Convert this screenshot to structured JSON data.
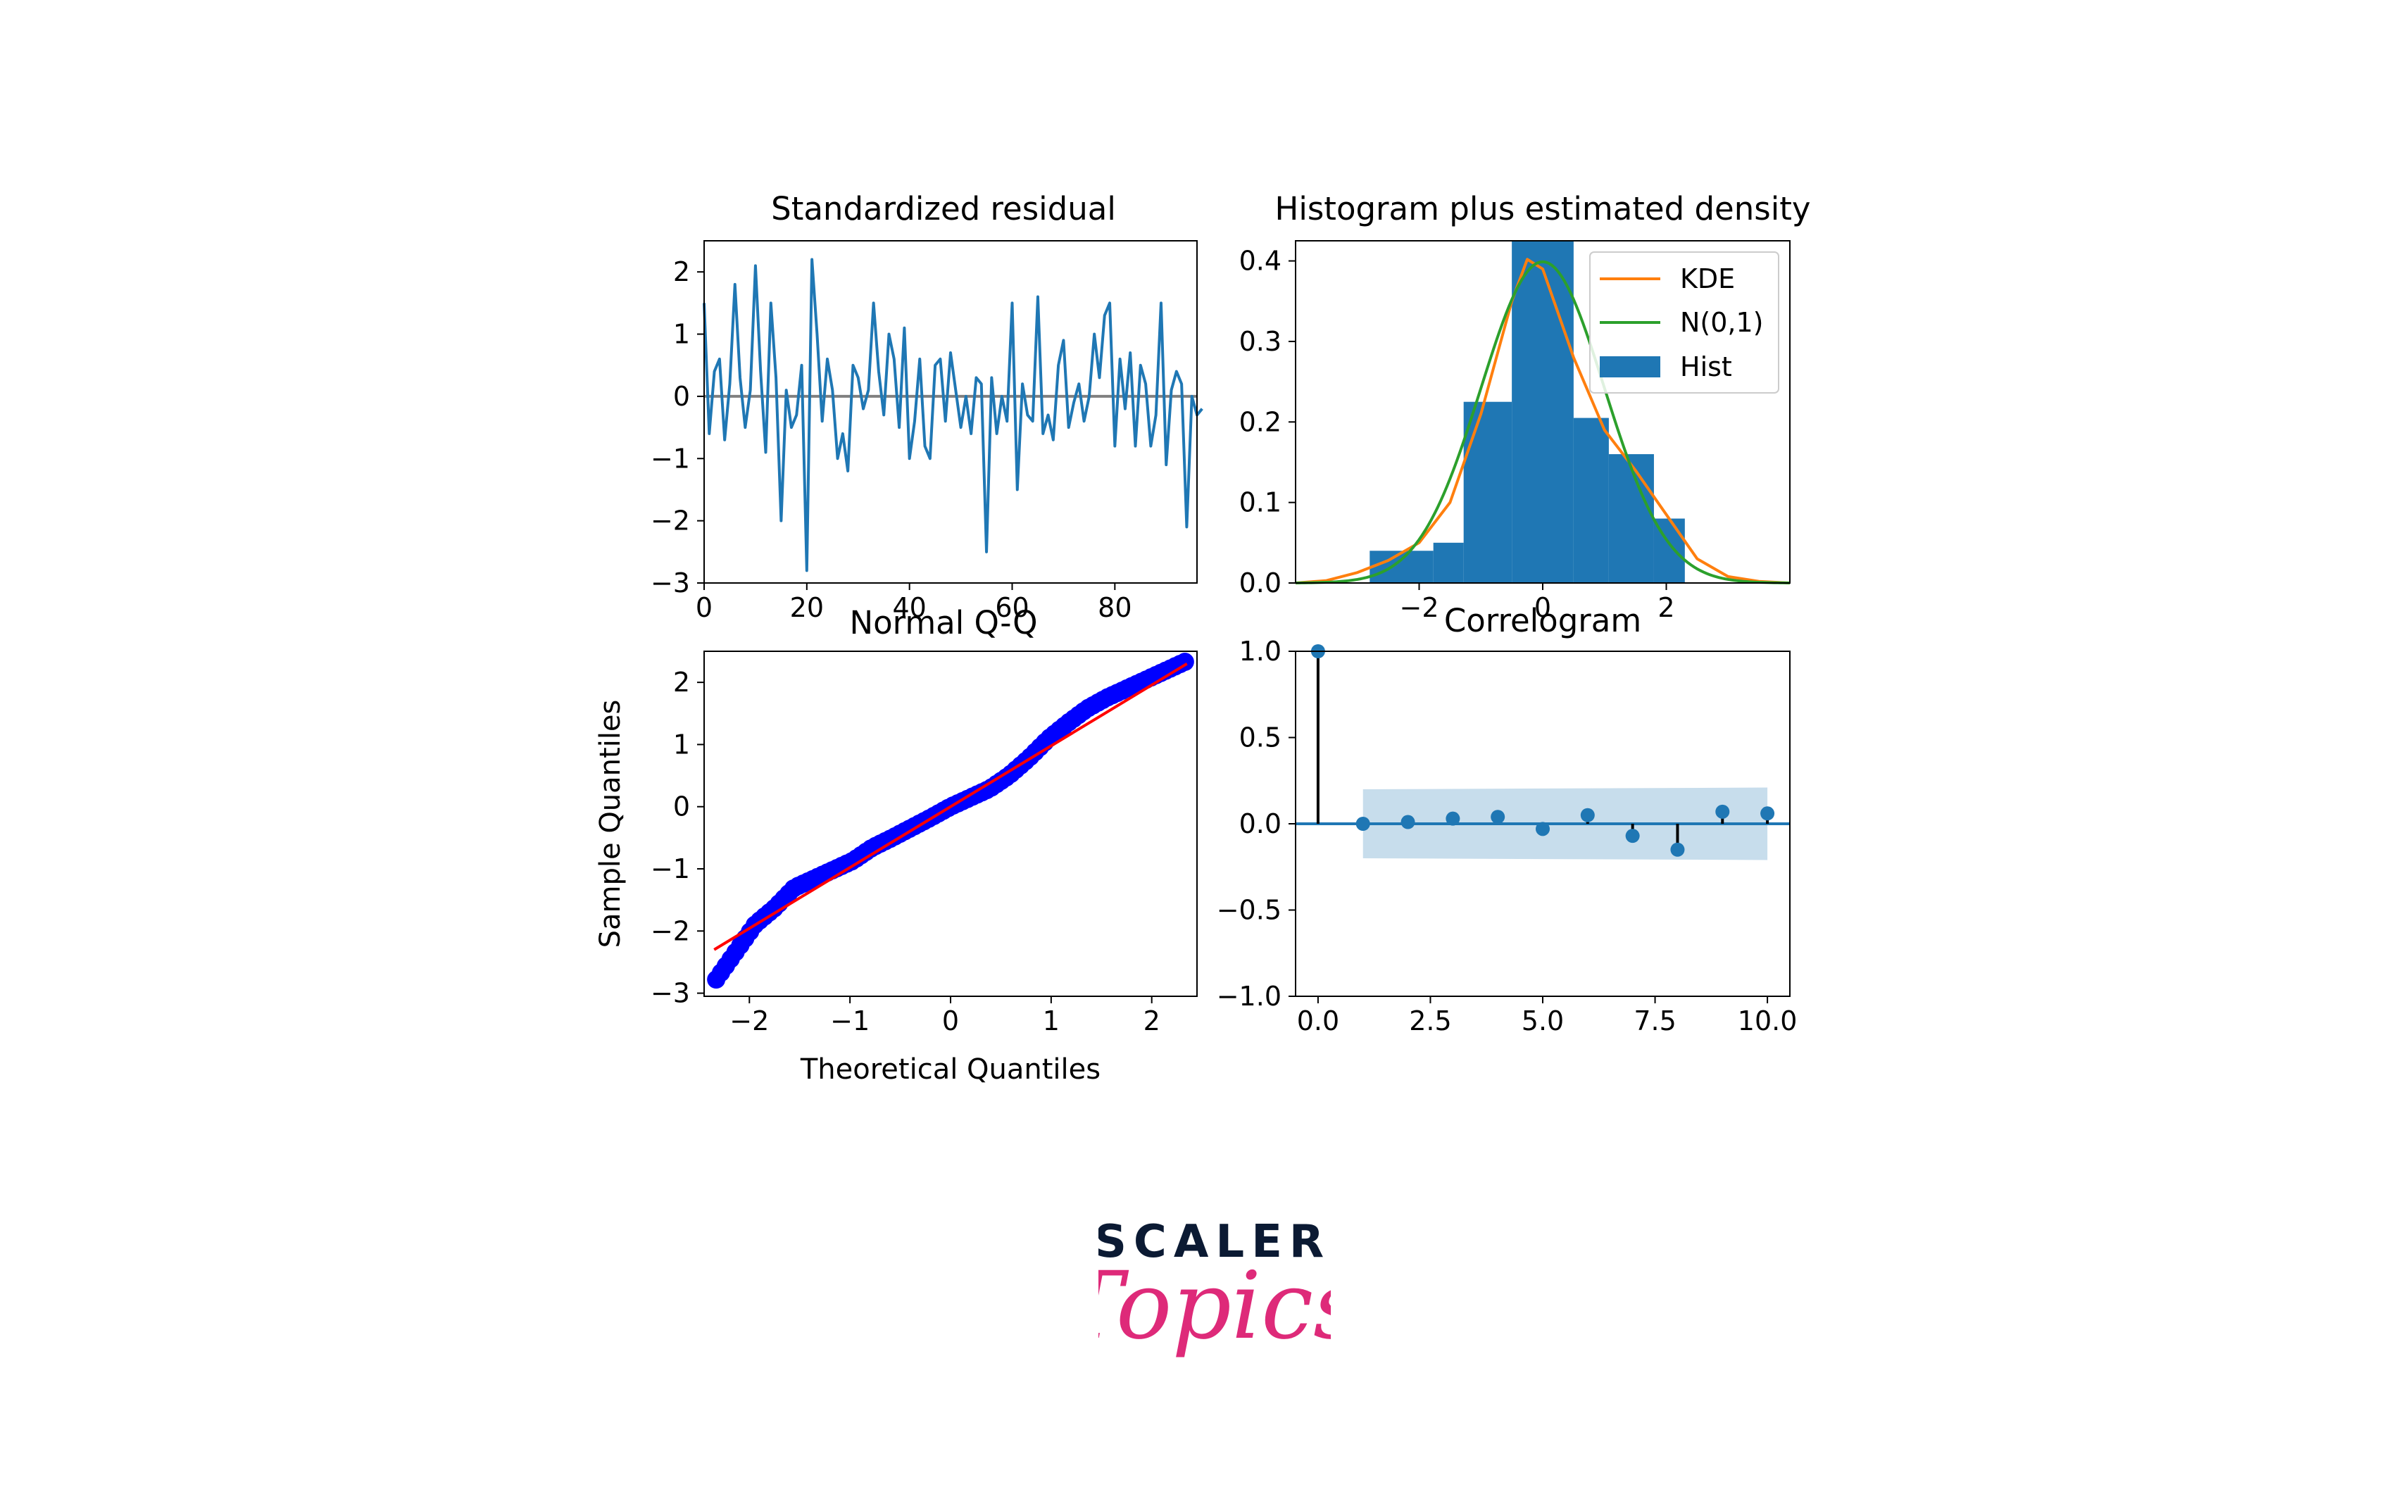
{
  "figure": {
    "panels": {
      "resid": {
        "title": "Standardized residual"
      },
      "hist": {
        "title": "Histogram plus estimated density"
      },
      "qq": {
        "title": "Normal Q-Q"
      },
      "corr": {
        "title": "Correlogram"
      }
    },
    "colors": {
      "blue": "#1f77b4",
      "orange": "#ff7f0e",
      "green": "#2ca02c",
      "red": "#ff0000",
      "qq_points": "#0000ff",
      "stem": "#000000"
    }
  },
  "chart_data": [
    {
      "type": "line",
      "title": "Standardized residual",
      "xlabel": "",
      "ylabel": "",
      "xlim": [
        0,
        96
      ],
      "ylim": [
        -3,
        2.5
      ],
      "xticks": [
        0,
        20,
        40,
        60,
        80
      ],
      "yticks": [
        -3,
        -2,
        -1,
        0,
        1,
        2
      ],
      "xtick_labels": [
        "0",
        "20",
        "40",
        "60",
        "80"
      ],
      "ytick_labels": [
        "−3",
        "−2",
        "−1",
        "0",
        "1",
        "2"
      ],
      "hline": 0,
      "series": [
        {
          "values": [
            1.5,
            -0.6,
            0.4,
            0.6,
            -0.7,
            0.2,
            1.8,
            0.3,
            -0.5,
            0.1,
            2.1,
            0.4,
            -0.9,
            1.5,
            0.3,
            -2.0,
            0.1,
            -0.5,
            -0.3,
            0.5,
            -2.8,
            2.2,
            1.0,
            -0.4,
            0.6,
            0.1,
            -1.0,
            -0.6,
            -1.2,
            0.5,
            0.3,
            -0.2,
            0.1,
            1.5,
            0.4,
            -0.3,
            1.0,
            0.6,
            -0.5,
            1.1,
            -1.0,
            -0.4,
            0.6,
            -0.8,
            -1.0,
            0.5,
            0.6,
            -0.4,
            0.7,
            0.1,
            -0.5,
            0.0,
            -0.6,
            0.3,
            0.2,
            -2.5,
            0.3,
            -0.6,
            0.0,
            -0.4,
            1.5,
            -1.5,
            0.2,
            -0.3,
            -0.4,
            1.6,
            -0.6,
            -0.3,
            -0.7,
            0.5,
            0.9,
            -0.5,
            -0.1,
            0.2,
            -0.4,
            0.0,
            1.0,
            0.3,
            1.3,
            1.5,
            -0.8,
            0.6,
            -0.2,
            0.7,
            -0.8,
            0.5,
            0.2,
            -0.8,
            -0.3,
            1.5,
            -1.1,
            0.1,
            0.4,
            0.2,
            -2.1,
            0.0,
            -0.3,
            -0.2
          ]
        }
      ]
    },
    {
      "type": "bar",
      "title": "Histogram plus estimated density",
      "xlim": [
        -4,
        4
      ],
      "ylim": [
        0,
        0.425
      ],
      "xticks": [
        -2,
        0,
        2
      ],
      "yticks": [
        0.0,
        0.1,
        0.2,
        0.3,
        0.4
      ],
      "xtick_labels": [
        "−2",
        "0",
        "2"
      ],
      "ytick_labels": [
        "0.0",
        "0.1",
        "0.2",
        "0.3",
        "0.4"
      ],
      "legend": [
        "KDE",
        "N(0,1)",
        "Hist"
      ],
      "legend_position": "upper right",
      "hist": {
        "bin_edges": [
          -2.8,
          -1.77,
          -1.28,
          -0.5,
          0.5,
          1.07,
          1.8,
          2.3
        ],
        "heights": [
          0.04,
          0.05,
          0.225,
          0.425,
          0.205,
          0.16,
          0.08
        ]
      },
      "kde": {
        "x": [
          -4.0,
          -3.5,
          -3.0,
          -2.5,
          -2.0,
          -1.5,
          -1.0,
          -0.5,
          -0.25,
          0.0,
          0.5,
          1.0,
          1.5,
          2.0,
          2.5,
          3.0,
          3.5,
          4.0
        ],
        "y": [
          0.0,
          0.003,
          0.013,
          0.028,
          0.05,
          0.1,
          0.21,
          0.35,
          0.402,
          0.39,
          0.28,
          0.19,
          0.14,
          0.085,
          0.03,
          0.008,
          0.002,
          0.0
        ]
      },
      "normal": {
        "mean": 0,
        "std": 1
      }
    },
    {
      "type": "scatter",
      "title": "Normal Q-Q",
      "xlabel": "Theoretical Quantiles",
      "ylabel": "Sample Quantiles",
      "xlim": [
        -2.45,
        2.45
      ],
      "ylim": [
        -3.05,
        2.5
      ],
      "xticks": [
        -2,
        -1,
        0,
        1,
        2
      ],
      "yticks": [
        -3,
        -2,
        -1,
        0,
        1,
        2
      ],
      "xtick_labels": [
        "−2",
        "−1",
        "0",
        "1",
        "2"
      ],
      "ytick_labels": [
        "−3",
        "−2",
        "−1",
        "0",
        "1",
        "2"
      ],
      "reference_line": {
        "x": [
          -2.35,
          2.35
        ],
        "y": [
          -2.3,
          2.3
        ]
      },
      "points": {
        "n": 98,
        "x_min": -2.33,
        "x_max": 2.33,
        "deviations": [
          -0.45,
          -0.2,
          0.05,
          0.12,
          0.25,
          0.2,
          0.15,
          0.1,
          0.12,
          0.08,
          0.05,
          0.02,
          0.0,
          -0.05,
          -0.1,
          -0.08,
          0.0,
          0.12,
          0.18,
          0.22,
          0.2,
          0.15,
          0.1,
          0.05,
          0.0
        ]
      }
    },
    {
      "type": "scatter",
      "title": "Correlogram",
      "xlim": [
        -0.5,
        10.5
      ],
      "ylim": [
        -1.0,
        1.0
      ],
      "xticks": [
        0.0,
        2.5,
        5.0,
        7.5,
        10.0
      ],
      "yticks": [
        -1.0,
        -0.5,
        0.0,
        0.5,
        1.0
      ],
      "xtick_labels": [
        "0.0",
        "2.5",
        "5.0",
        "7.5",
        "10.0"
      ],
      "ytick_labels": [
        "−1.0",
        "−0.5",
        "0.0",
        "0.5",
        "1.0"
      ],
      "lags": [
        0,
        1,
        2,
        3,
        4,
        5,
        6,
        7,
        8,
        9,
        10
      ],
      "values": [
        1.0,
        0.0,
        0.01,
        0.03,
        0.04,
        -0.03,
        0.05,
        -0.07,
        -0.15,
        0.07,
        0.06
      ],
      "confidence_band": {
        "x": [
          1,
          10
        ],
        "upper": [
          0.2,
          0.21
        ],
        "lower": [
          -0.2,
          -0.21
        ]
      }
    }
  ],
  "logo": {
    "word1": "SCALER",
    "word2": "Topics"
  }
}
